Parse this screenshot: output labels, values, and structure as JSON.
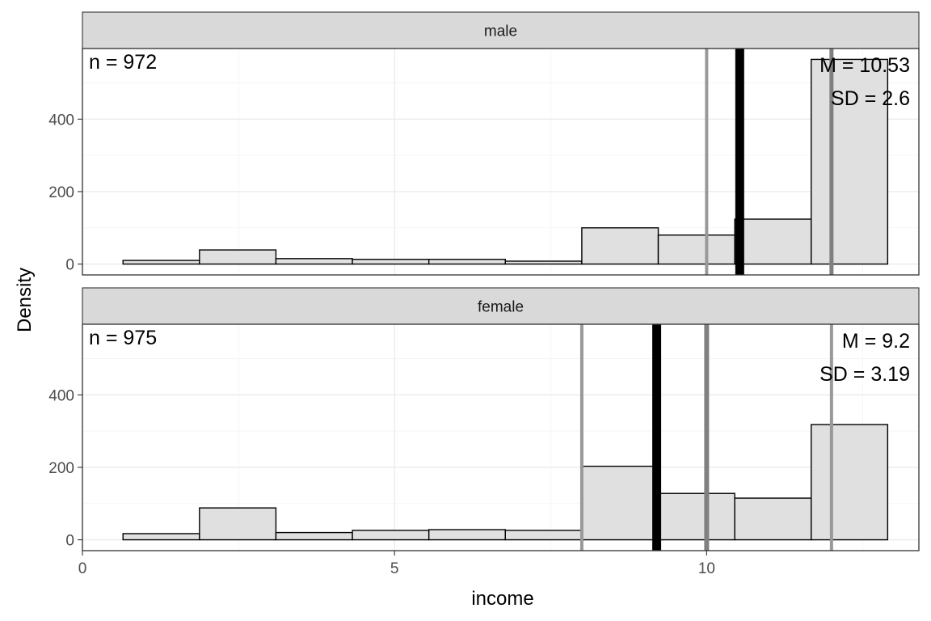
{
  "chart_data": {
    "type": "bar",
    "xlabel": "income",
    "ylabel": "Density",
    "xlim": [
      0,
      13.4
    ],
    "ylim": [
      -30,
      595
    ],
    "x_ticks": [
      0,
      5,
      10
    ],
    "y_ticks": [
      0,
      200,
      400
    ],
    "grid": true,
    "bin_edges": [
      0.65,
      1.875,
      3.1,
      4.325,
      5.55,
      6.775,
      8.0,
      9.225,
      10.45,
      11.675,
      12.9
    ],
    "facets": [
      {
        "label": "male",
        "values": [
          10,
          39,
          15,
          13,
          13,
          8,
          100,
          80,
          124,
          565
        ],
        "n_label": "n = 972",
        "mean_label": "M = 10.53",
        "sd_label": "SD = 2.6",
        "mean": 10.53,
        "vlines": [
          {
            "x": 10.0,
            "color": "#999999",
            "width": 4
          },
          {
            "x": 10.53,
            "color": "#000000",
            "width": 11
          },
          {
            "x": 12.0,
            "color": "#808080",
            "width": 5
          }
        ]
      },
      {
        "label": "female",
        "values": [
          17,
          88,
          20,
          26,
          28,
          26,
          203,
          128,
          115,
          318
        ],
        "n_label": "n = 975",
        "mean_label": "M = 9.2",
        "sd_label": "SD = 3.19",
        "mean": 9.2,
        "vlines": [
          {
            "x": 8.0,
            "color": "#999999",
            "width": 4
          },
          {
            "x": 9.2,
            "color": "#000000",
            "width": 11
          },
          {
            "x": 10.0,
            "color": "#808080",
            "width": 6
          },
          {
            "x": 12.0,
            "color": "#999999",
            "width": 4
          }
        ]
      }
    ]
  }
}
